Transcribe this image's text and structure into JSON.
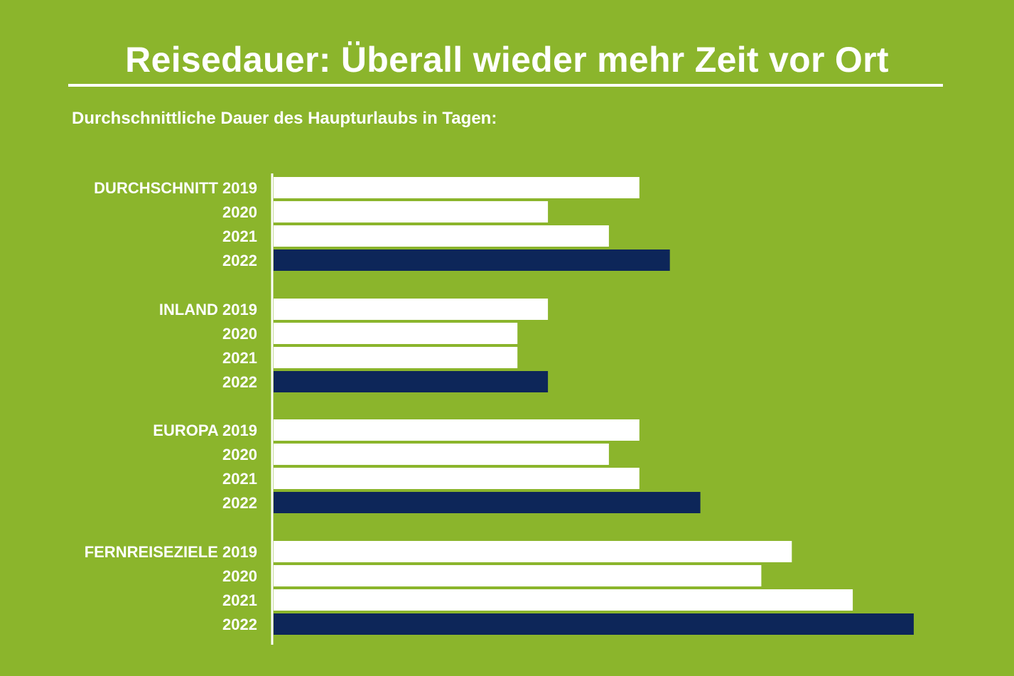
{
  "title": "Reisedauer: Überall wieder mehr Zeit vor Ort",
  "subtitle": "Durchschnittliche Dauer des Haupturlaubs in Tagen:",
  "colors": {
    "background": "#8bb52c",
    "bar_prior_years": "#ffffff",
    "bar_2022": "#0d2659",
    "text": "#ffffff"
  },
  "chart_data": {
    "type": "bar",
    "orientation": "horizontal",
    "xlim": [
      0,
      21
    ],
    "grid": false,
    "legend": "none",
    "groups": [
      {
        "name": "DURCHSCHNITT",
        "bars": [
          {
            "label": "DURCHSCHNITT 2019",
            "year": "2019",
            "value": 12
          },
          {
            "label": "2020",
            "year": "2020",
            "value": 9
          },
          {
            "label": "2021",
            "year": "2021",
            "value": 11
          },
          {
            "label": "2022",
            "year": "2022",
            "value": 13
          }
        ]
      },
      {
        "name": "INLAND",
        "bars": [
          {
            "label": "INLAND 2019",
            "year": "2019",
            "value": 9
          },
          {
            "label": "2020",
            "year": "2020",
            "value": 8
          },
          {
            "label": "2021",
            "year": "2021",
            "value": 8
          },
          {
            "label": "2022",
            "year": "2022",
            "value": 9
          }
        ]
      },
      {
        "name": "EUROPA",
        "bars": [
          {
            "label": "EUROPA 2019",
            "year": "2019",
            "value": 12
          },
          {
            "label": "2020",
            "year": "2020",
            "value": 11
          },
          {
            "label": "2021",
            "year": "2021",
            "value": 12
          },
          {
            "label": "2022",
            "year": "2022",
            "value": 14
          }
        ]
      },
      {
        "name": "FERNREISEZIELE",
        "bars": [
          {
            "label": "FERNREISEZIELE 2019",
            "year": "2019",
            "value": 17
          },
          {
            "label": "2020",
            "year": "2020",
            "value": 16
          },
          {
            "label": "2021",
            "year": "2021",
            "value": 19
          },
          {
            "label": "2022",
            "year": "2022",
            "value": 21
          }
        ]
      }
    ]
  }
}
